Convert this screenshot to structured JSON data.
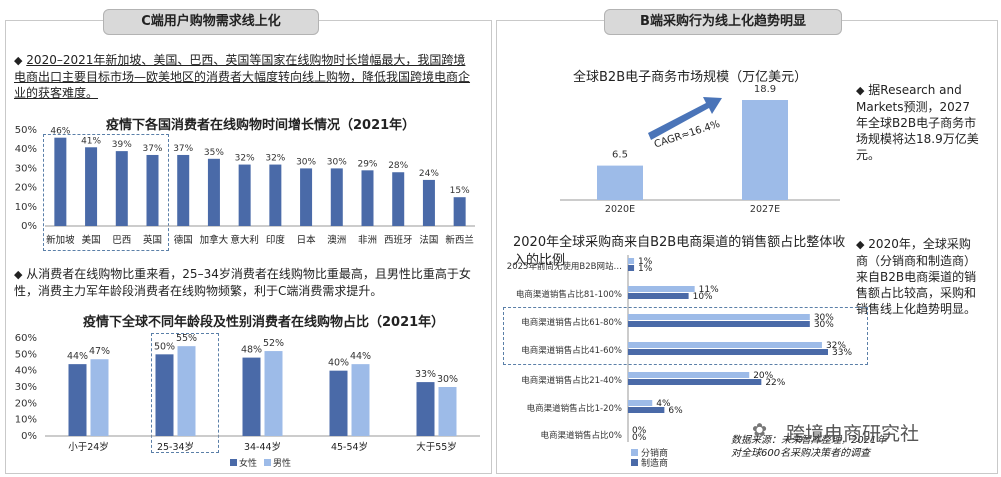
{
  "left_panel": {
    "header": "C端用户购物需求线上化",
    "bullet1": "2020–2021年新加坡、美国、巴西、英国等国家在线购物时长增幅最大，我国跨境电商出口主要目标市场—欧美地区的消费者大幅度转向线上购物，降低我国跨境电商企业的获客难度。",
    "bullet2": "从消费者在线购物比重来看，25–34岁消费者在线购物比重最高，且男性比重高于女性，消费主力军年龄段消费者在线购物频繁，利于C端消费需求提升。"
  },
  "right_panel": {
    "header": "B端采购行为线上化趋势明显",
    "note1": "据Research and Markets预测，2027年全球B2B电子商务市场规模将达18.9万亿美元。",
    "note2": "2020年，全球采购商（分销商和制造商）来自B2B电商渠道的销售额占比较高，采购和销售线上化趋势明显。",
    "source": "数据来源：未来智库整理，2021年对全球600名采购决策者的调查",
    "watermark": "跨境电商研究社",
    "cagr_label": "CAGR≈16.4%"
  },
  "colors": {
    "bar_dark": "#4a6aa8",
    "bar_light": "#9dbbe8",
    "header_bg": "#d9d9d9"
  },
  "chart_data": [
    {
      "id": "online_time_growth",
      "type": "bar",
      "title": "疫情下各国消费者在线购物时间增长情况（2021年）",
      "categories": [
        "新加坡",
        "美国",
        "巴西",
        "英国",
        "德国",
        "加拿大",
        "意大利",
        "印度",
        "日本",
        "澳洲",
        "非洲",
        "西班牙",
        "法国",
        "新西兰"
      ],
      "values": [
        46,
        41,
        39,
        37,
        37,
        35,
        32,
        32,
        30,
        30,
        29,
        28,
        24,
        15
      ],
      "labels": [
        "46%",
        "41%",
        "39%",
        "37%",
        "37%",
        "35%",
        "32%",
        "32%",
        "30%",
        "30%",
        "29%",
        "28%",
        "24%",
        "15%"
      ],
      "yticks": [
        "0%",
        "10%",
        "20%",
        "30%",
        "40%",
        "50%"
      ],
      "ylim": [
        0,
        50
      ]
    },
    {
      "id": "online_share_age_gender",
      "type": "bar",
      "title": "疫情下全球不同年龄段及性别消费者在线购物占比（2021年）",
      "categories": [
        "小于24岁",
        "25-34岁",
        "34-44岁",
        "45-54岁",
        "大于55岁"
      ],
      "series": [
        {
          "name": "女性",
          "values": [
            44,
            50,
            48,
            40,
            33
          ],
          "labels": [
            "44%",
            "50%",
            "48%",
            "40%",
            "33%"
          ]
        },
        {
          "name": "男性",
          "values": [
            47,
            55,
            52,
            44,
            30
          ],
          "labels": [
            "47%",
            "55%",
            "52%",
            "44%",
            "30%"
          ]
        }
      ],
      "yticks": [
        "0%",
        "10%",
        "20%",
        "30%",
        "40%",
        "50%",
        "60%"
      ],
      "ylim": [
        0,
        60
      ]
    },
    {
      "id": "b2b_market_size",
      "type": "bar",
      "title": "全球B2B电子商务市场规模（万亿美元）",
      "categories": [
        "2020E",
        "2027E"
      ],
      "values": [
        6.5,
        18.9
      ],
      "labels": [
        "6.5",
        "18.9"
      ]
    },
    {
      "id": "b2b_channel_share",
      "type": "bar",
      "orientation": "horizontal",
      "title": "2020年全球采购商来自B2B电商渠道的销售额占比整体收入的比例",
      "categories": [
        "2025年前尚无使用B2B网站…",
        "电商渠道销售占比81-100%",
        "电商渠道销售占比61-80%",
        "电商渠道销售占比41-60%",
        "电商渠道销售占比21-40%",
        "电商渠道销售占比1-20%",
        "电商渠道销售占比0%"
      ],
      "series": [
        {
          "name": "分销商",
          "values": [
            1,
            11,
            30,
            32,
            20,
            4,
            0
          ],
          "labels": [
            "1%",
            "11%",
            "30%",
            "32%",
            "20%",
            "4%",
            "0%"
          ]
        },
        {
          "name": "制造商",
          "values": [
            1,
            10,
            30,
            33,
            22,
            6,
            0
          ],
          "labels": [
            "1%",
            "10%",
            "30%",
            "33%",
            "22%",
            "6%",
            "0%"
          ]
        }
      ],
      "xlim": [
        0,
        35
      ]
    }
  ]
}
